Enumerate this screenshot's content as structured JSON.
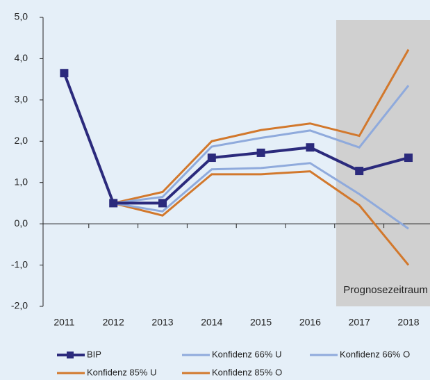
{
  "chart_data": {
    "type": "line",
    "categories": [
      "2011",
      "2012",
      "2013",
      "2014",
      "2015",
      "2016",
      "2017",
      "2018"
    ],
    "annotation": "Prognosezeitraum",
    "series": [
      {
        "name": "Konfidenz 85% U",
        "color": "#d2782c",
        "values": [
          3.65,
          0.5,
          0.2,
          1.2,
          1.2,
          1.27,
          0.45,
          -1.0
        ]
      },
      {
        "name": "Konfidenz 85% O",
        "color": "#d2782c",
        "values": [
          3.65,
          0.5,
          0.77,
          2.0,
          2.27,
          2.43,
          2.13,
          4.22
        ]
      },
      {
        "name": "Konfidenz 66% U",
        "color": "#8faadc",
        "values": [
          3.65,
          0.5,
          0.3,
          1.32,
          1.35,
          1.47,
          0.72,
          -0.12
        ]
      },
      {
        "name": "Konfidenz 66% O",
        "color": "#8faadc",
        "values": [
          3.65,
          0.5,
          0.65,
          1.87,
          2.08,
          2.26,
          1.85,
          3.35
        ]
      },
      {
        "name": "BIP",
        "color": "#2b2a7c",
        "values": [
          3.65,
          0.5,
          0.5,
          1.6,
          1.72,
          1.85,
          1.28,
          1.6
        ],
        "markers": true
      }
    ],
    "ylim": [
      -2,
      5
    ],
    "yticks": [
      {
        "value": -2,
        "label": "-2,0"
      },
      {
        "value": -1,
        "label": "-1,0"
      },
      {
        "value": 0,
        "label": "0,0"
      },
      {
        "value": 1,
        "label": "1,0"
      },
      {
        "value": 2,
        "label": "2,0"
      },
      {
        "value": 3,
        "label": "3,0"
      },
      {
        "value": 4,
        "label": "4,0"
      },
      {
        "value": 5,
        "label": "5,0"
      }
    ],
    "grid": false
  }
}
